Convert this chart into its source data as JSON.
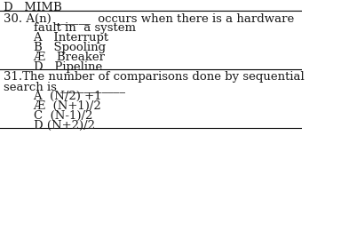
{
  "bg_color": "#ffffff",
  "text_color": "#1a1a1a",
  "top_partial_text": "D  MIMB",
  "q30_line1": "30. A(n) ______  occurs when there is a hardware",
  "q30_line2": "        fault in  a system",
  "q30_A": "        A   Interrupt",
  "q30_B": "        B   Spooling",
  "q30_C": "        Æ   Breaker",
  "q30_D": "        D   Pipeline",
  "q31_line1": "31.The number of comparisons done by sequential",
  "q31_line2": "search is ___________",
  "q31_A": "        A  (N/2) +1",
  "q31_B_strike": "        Æ  (N+1)/2",
  "q31_C": "        C  (N-1)/2",
  "q31_D": "        D (N+2)/2",
  "font_size": 9.5,
  "font_family": "serif"
}
